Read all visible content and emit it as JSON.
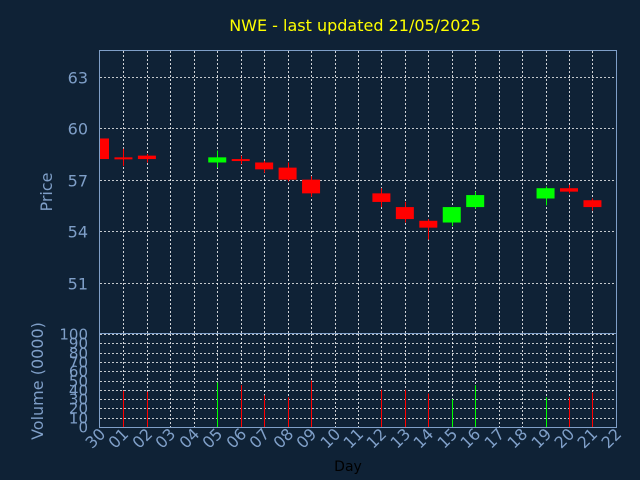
{
  "chart_data": {
    "type": "candlestick",
    "title": "NWE - last updated 21/05/2025",
    "xlabel": "Day",
    "price_panel": {
      "ylabel": "Price",
      "ylim": [
        48,
        64.5
      ],
      "yticks": [
        "63",
        "60",
        "57",
        "54",
        "51"
      ],
      "grid": true
    },
    "volume_panel": {
      "ylabel": "Volume (0000)",
      "ylim": [
        0,
        100
      ],
      "yticks": [
        "100",
        "90",
        "80",
        "70",
        "60",
        "50",
        "40",
        "30",
        "20",
        "10",
        "0"
      ],
      "grid": true
    },
    "x_ticks": [
      "30",
      "01",
      "02",
      "03",
      "04",
      "05",
      "06",
      "07",
      "08",
      "09",
      "10",
      "11",
      "12",
      "13",
      "14",
      "15",
      "16",
      "17",
      "18",
      "19",
      "20",
      "21",
      "22"
    ],
    "candles": [
      {
        "day": "30",
        "open": 59.4,
        "close": 58.2,
        "high": 59.4,
        "low": 58.2,
        "volume": 0
      },
      {
        "day": "01",
        "open": 58.3,
        "close": 58.2,
        "high": 58.8,
        "low": 57.8,
        "volume": 39
      },
      {
        "day": "02",
        "open": 58.4,
        "close": 58.2,
        "high": 58.5,
        "low": 58.0,
        "volume": 38
      },
      {
        "day": "05",
        "open": 58.0,
        "close": 58.3,
        "high": 58.7,
        "low": 57.7,
        "volume": 48
      },
      {
        "day": "06",
        "open": 58.2,
        "close": 58.1,
        "high": 58.4,
        "low": 57.9,
        "volume": 45
      },
      {
        "day": "07",
        "open": 58.0,
        "close": 57.6,
        "high": 58.1,
        "low": 57.4,
        "volume": 34
      },
      {
        "day": "08",
        "open": 57.7,
        "close": 57.0,
        "high": 58.0,
        "low": 56.9,
        "volume": 32
      },
      {
        "day": "09",
        "open": 57.0,
        "close": 56.2,
        "high": 57.2,
        "low": 56.0,
        "volume": 50
      },
      {
        "day": "12",
        "open": 56.2,
        "close": 55.7,
        "high": 56.5,
        "low": 55.4,
        "volume": 40
      },
      {
        "day": "13",
        "open": 55.4,
        "close": 54.7,
        "high": 55.7,
        "low": 54.5,
        "volume": 40
      },
      {
        "day": "14",
        "open": 54.6,
        "close": 54.2,
        "high": 54.7,
        "low": 53.5,
        "volume": 36
      },
      {
        "day": "15",
        "open": 54.5,
        "close": 55.4,
        "high": 55.4,
        "low": 54.3,
        "volume": 30
      },
      {
        "day": "16",
        "open": 55.4,
        "close": 56.1,
        "high": 56.3,
        "low": 55.3,
        "volume": 45
      },
      {
        "day": "19",
        "open": 55.9,
        "close": 56.5,
        "high": 56.6,
        "low": 55.5,
        "volume": 32
      },
      {
        "day": "20",
        "open": 56.5,
        "close": 56.3,
        "high": 56.7,
        "low": 56.2,
        "volume": 32
      },
      {
        "day": "21",
        "open": 55.8,
        "close": 55.4,
        "high": 55.9,
        "low": 55.2,
        "volume": 37
      }
    ],
    "colors": {
      "background": "#0f2236",
      "plot_border": "#7f9fc8",
      "grid": "#ffffff",
      "title": "#ffff00",
      "axis_text": "#7f9fc8",
      "up": "#00ff00",
      "down": "#ff0000"
    }
  }
}
